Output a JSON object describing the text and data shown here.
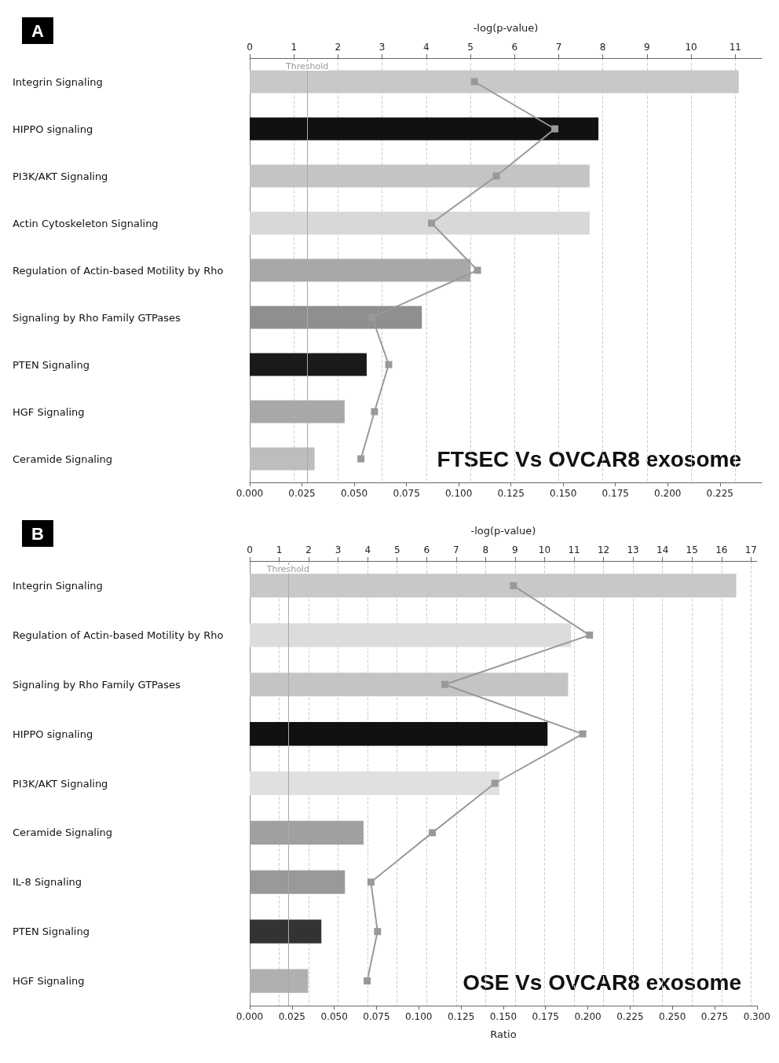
{
  "chart_data": [
    {
      "type": "bar",
      "orientation": "horizontal",
      "title": "A",
      "x2label": "-log(p-value)",
      "annotations": [
        "FTSEC Vs OVCAR8 exosome"
      ],
      "categories": [
        "Integrin Signaling",
        "HIPPO signaling",
        "PI3K/AKT Signaling",
        "Actin Cytoskeleton Signaling",
        "Regulation of Actin-based Motility by Rho",
        "Signaling by Rho Family GTPases",
        "PTEN Signaling",
        "HGF Signaling",
        "Ceramide Signaling"
      ],
      "series": [
        {
          "axis": "x2",
          "colors": [
            "#c8c8c8",
            "#111111",
            "#c4c4c4",
            "#d8d8d8",
            "#a8a8a8",
            "#8f8f8f",
            "#1a1a1a",
            "#a8a8a8",
            "#bdbdbd"
          ],
          "values": [
            11.08,
            7.9,
            7.7,
            7.7,
            5.0,
            3.9,
            2.65,
            2.15,
            1.47
          ]
        },
        {
          "type": "line",
          "color": "#999999",
          "values": [
            0.1075,
            0.146,
            0.118,
            0.087,
            0.109,
            0.0586,
            0.0665,
            0.0597,
            0.0532
          ]
        }
      ],
      "marker": "square",
      "grid": "x",
      "xlim": [
        0,
        0.245
      ],
      "xticks": [
        {
          "value": 0,
          "label": "0.000"
        },
        {
          "value": 0.025,
          "label": "0.025"
        },
        {
          "value": 0.05,
          "label": "0.050"
        },
        {
          "value": 0.075,
          "label": "0.075"
        },
        {
          "value": 0.1,
          "label": "0.100"
        },
        {
          "value": 0.125,
          "label": "0.125"
        },
        {
          "value": 0.15,
          "label": "0.150"
        },
        {
          "value": 0.175,
          "label": "0.175"
        },
        {
          "value": 0.2,
          "label": "0.200"
        },
        {
          "value": 0.225,
          "label": "0.225"
        }
      ],
      "x2lim": [
        0,
        11.6
      ],
      "x2ticks": [
        0,
        1,
        2,
        3,
        4,
        5,
        6,
        7,
        8,
        9,
        10,
        11
      ],
      "ref_lines": [
        {
          "axis": "x2",
          "value": 1.3,
          "label": "Threshold"
        }
      ]
    },
    {
      "type": "bar",
      "orientation": "horizontal",
      "title": "B",
      "x2label": "-log(p-value)",
      "xlabel": "Ratio",
      "annotations": [
        "OSE Vs OVCAR8 exosome"
      ],
      "categories": [
        "Integrin Signaling",
        "Regulation of Actin-based Motility by Rho",
        "Signaling by Rho Family GTPases",
        "HIPPO signaling",
        "PI3K/AKT Signaling",
        "Ceramide Signaling",
        "IL-8 Signaling",
        "PTEN Signaling",
        "HGF Signaling"
      ],
      "series": [
        {
          "axis": "x2",
          "colors": [
            "#c8c8c8",
            "#dcdcdc",
            "#c4c4c4",
            "#111111",
            "#e0e0e0",
            "#a0a0a0",
            "#999999",
            "#333333",
            "#b0b0b0"
          ],
          "values": [
            16.5,
            10.9,
            10.8,
            10.1,
            8.47,
            3.86,
            3.23,
            2.43,
            1.98
          ]
        },
        {
          "type": "line",
          "color": "#999999",
          "values": [
            0.156,
            0.201,
            0.1154,
            0.197,
            0.145,
            0.108,
            0.0717,
            0.0756,
            0.0695
          ]
        }
      ],
      "marker": "square",
      "grid": "x",
      "xlim": [
        0,
        0.3
      ],
      "xticks": [
        {
          "value": 0,
          "label": "0.000"
        },
        {
          "value": 0.025,
          "label": "0.025"
        },
        {
          "value": 0.05,
          "label": "0.050"
        },
        {
          "value": 0.075,
          "label": "0.075"
        },
        {
          "value": 0.1,
          "label": "0.100"
        },
        {
          "value": 0.125,
          "label": "0.125"
        },
        {
          "value": 0.15,
          "label": "0.150"
        },
        {
          "value": 0.175,
          "label": "0.175"
        },
        {
          "value": 0.2,
          "label": "0.200"
        },
        {
          "value": 0.225,
          "label": "0.225"
        },
        {
          "value": 0.25,
          "label": "0.250"
        },
        {
          "value": 0.275,
          "label": "0.275"
        },
        {
          "value": 0.3,
          "label": "0.300"
        }
      ],
      "x2lim": [
        0,
        17.2
      ],
      "x2ticks": [
        0,
        1,
        2,
        3,
        4,
        5,
        6,
        7,
        8,
        9,
        10,
        11,
        12,
        13,
        14,
        15,
        16,
        17
      ],
      "ref_lines": [
        {
          "axis": "x2",
          "value": 1.3,
          "label": "Threshold"
        }
      ]
    }
  ]
}
